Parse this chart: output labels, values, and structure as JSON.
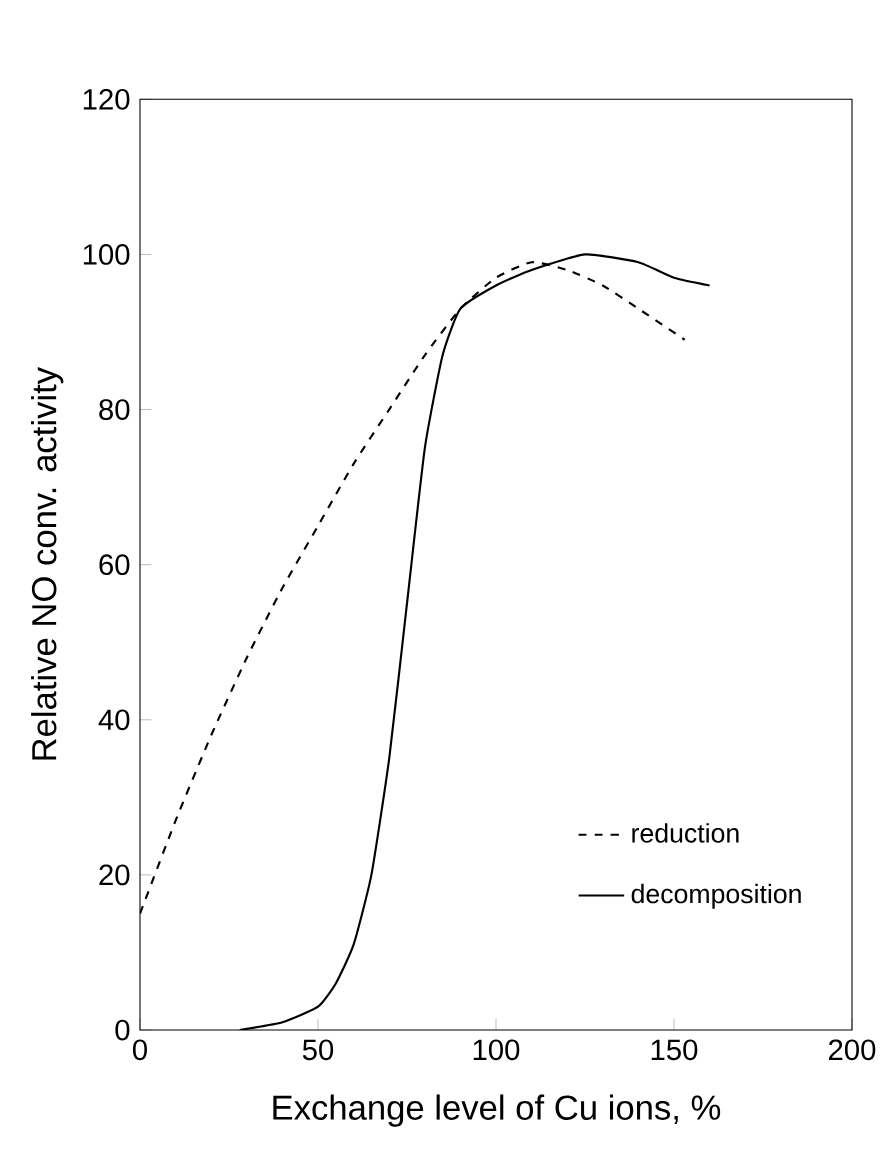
{
  "chart_data": {
    "type": "line",
    "xlabel": "Exchange level of Cu ions,  %",
    "ylabel": "Relative NO conv. activity",
    "xlim": [
      0,
      200
    ],
    "xticks": [
      0,
      50,
      100,
      150,
      200
    ],
    "ylim": [
      0,
      120
    ],
    "yticks": [
      0,
      20,
      40,
      60,
      80,
      100,
      120
    ],
    "legend": "bottom right",
    "grid": false,
    "series": [
      {
        "name": "reduction",
        "color": "#000000",
        "line_style": "dashed",
        "x": [
          0,
          10,
          20,
          30,
          40,
          50,
          60,
          70,
          80,
          90,
          100,
          110,
          120,
          130,
          140,
          153
        ],
        "values": [
          15,
          27,
          38,
          48,
          57,
          65,
          73,
          80,
          87,
          93,
          97,
          99,
          98,
          96,
          93,
          89
        ]
      },
      {
        "name": "decomposition",
        "color": "#000000",
        "line_style": "solid",
        "x": [
          28,
          40,
          50,
          55,
          60,
          65,
          70,
          75,
          80,
          85,
          90,
          100,
          110,
          125,
          140,
          150,
          160
        ],
        "values": [
          0,
          1,
          3,
          6,
          11,
          20,
          35,
          55,
          75,
          87,
          93,
          96,
          98,
          100,
          99,
          97,
          96
        ]
      }
    ]
  }
}
